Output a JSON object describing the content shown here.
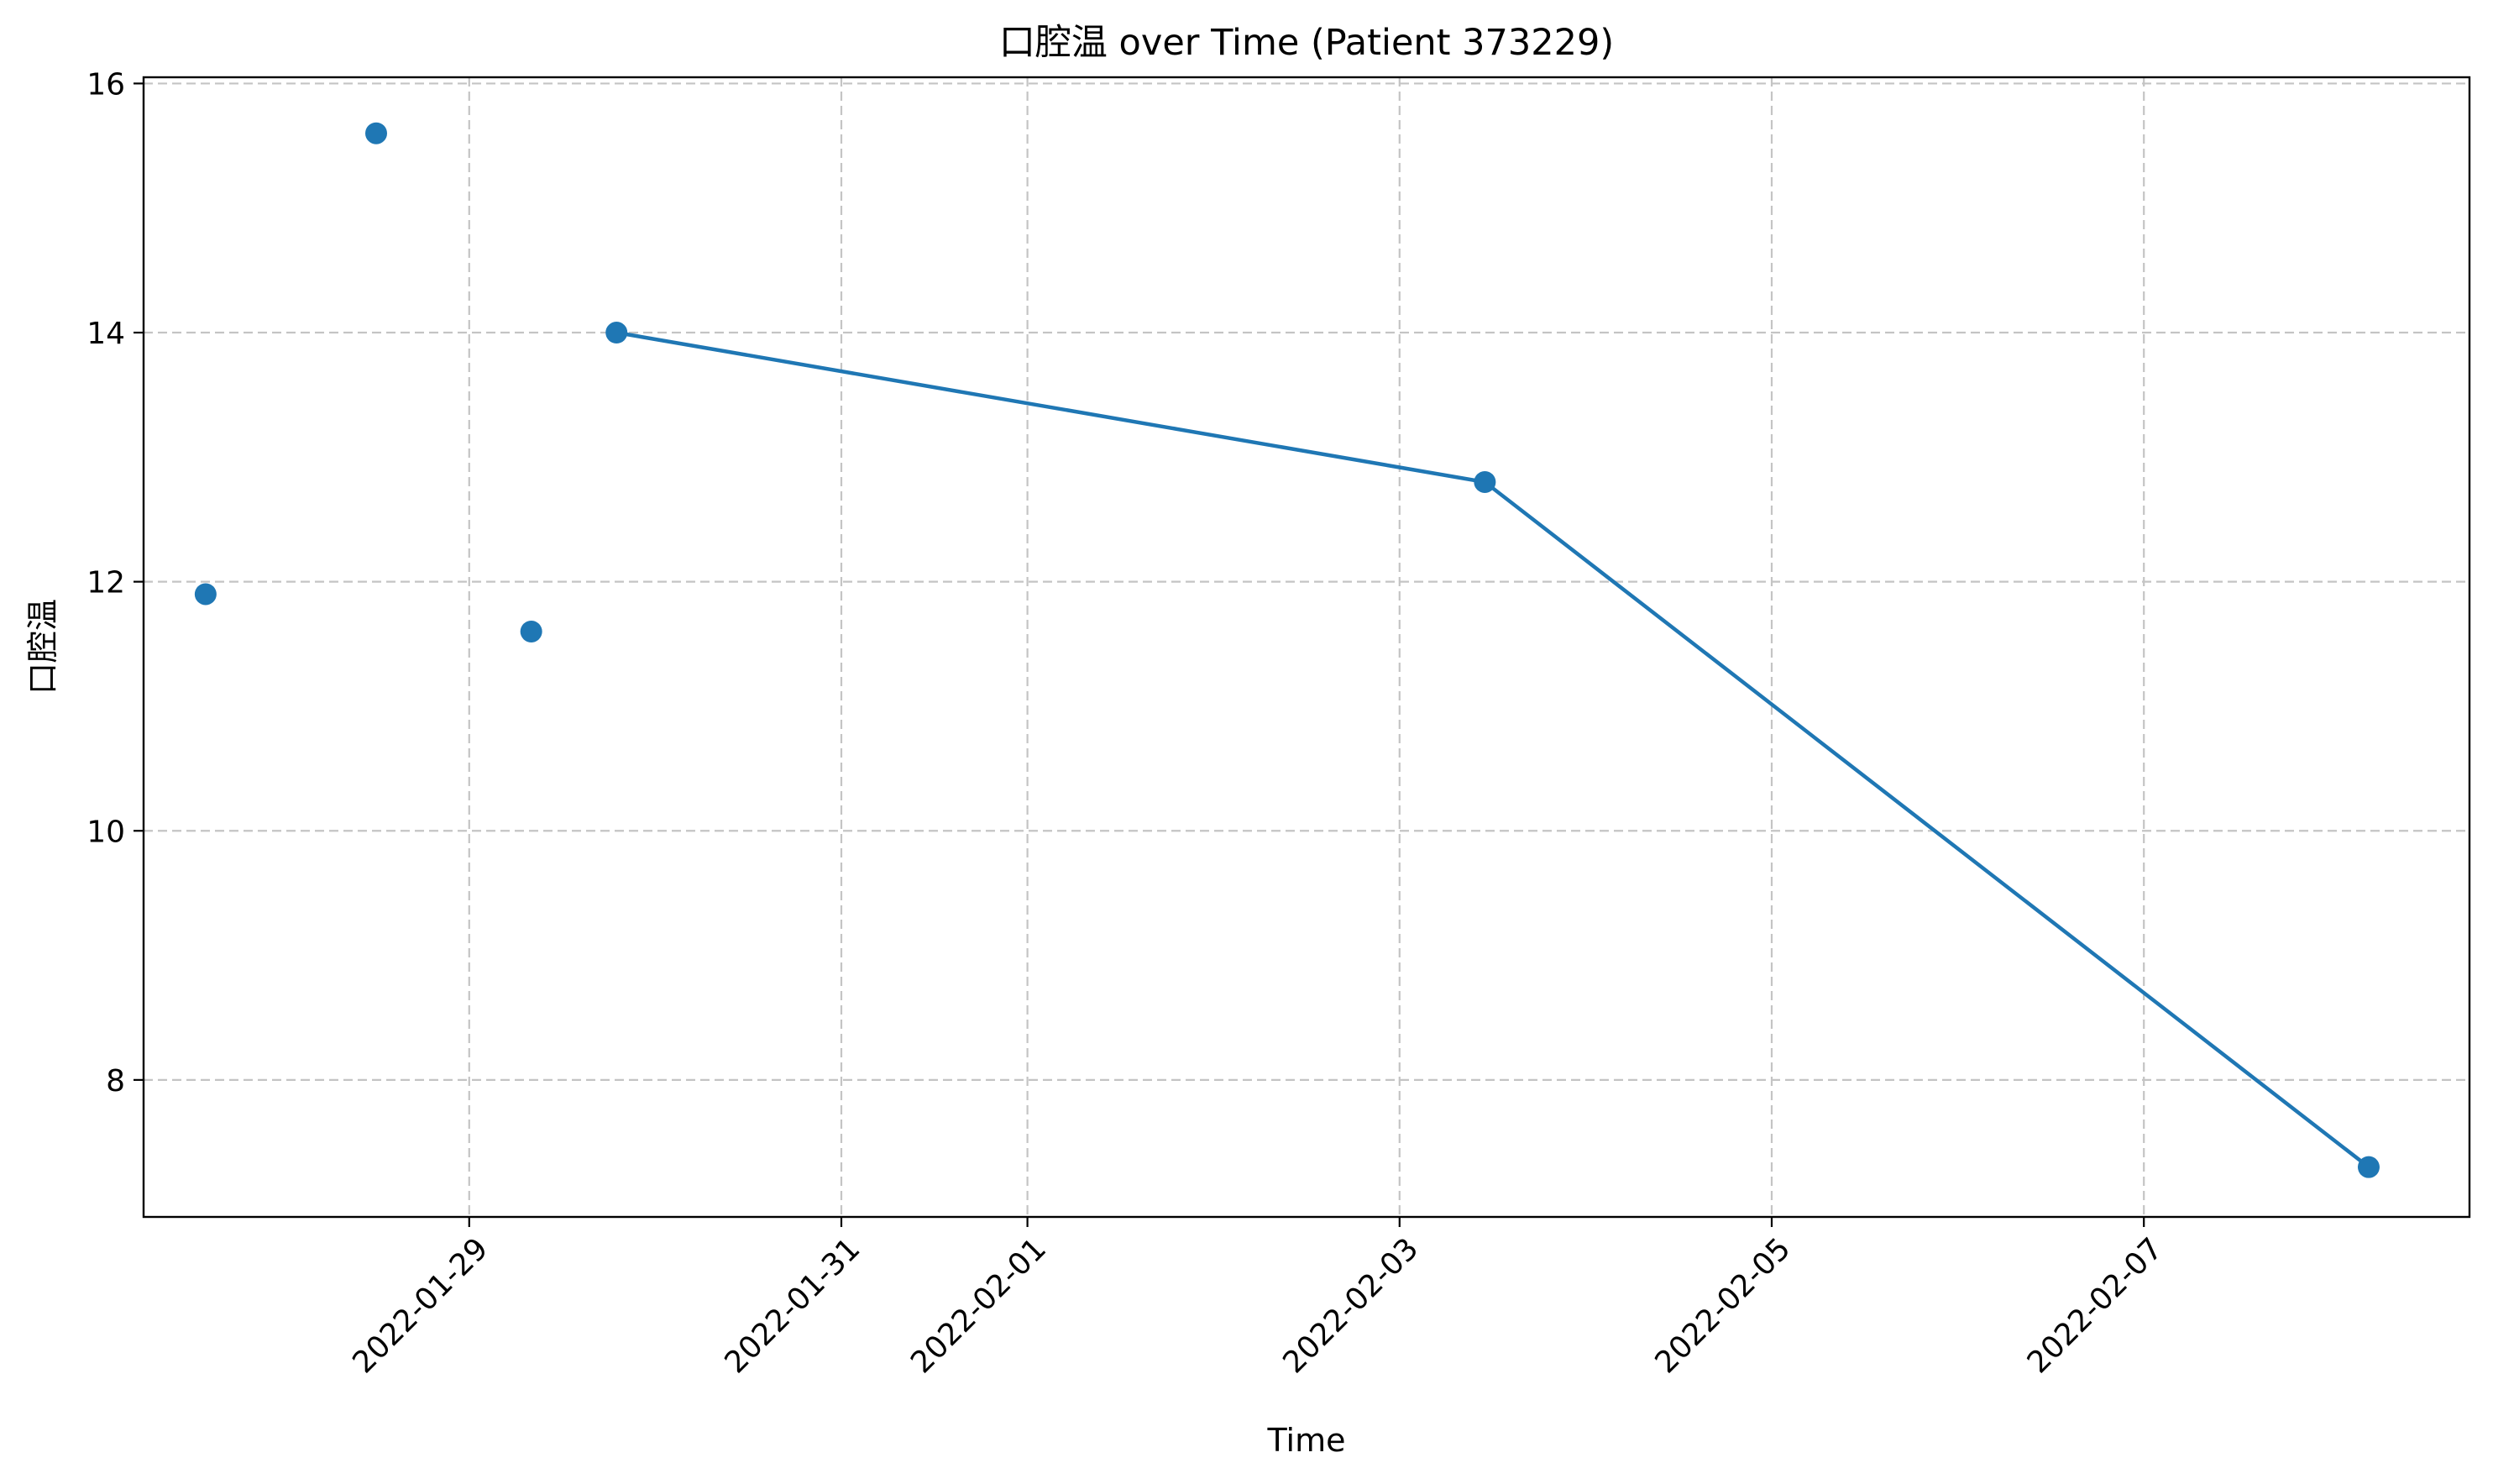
{
  "chart_data": {
    "type": "scatter",
    "title": "口腔温 over Time (Patient 373229)",
    "xlabel": "Time",
    "ylabel": "口腔温",
    "xlim": [
      "2022-01-27 06:00",
      "2022-02-08 18:00"
    ],
    "ylim": [
      6.9,
      16.05
    ],
    "x_ticks": [
      "2022-01-29",
      "2022-01-31",
      "2022-02-01",
      "2022-02-03",
      "2022-02-05",
      "2022-02-07"
    ],
    "y_ticks": [
      8,
      10,
      12,
      14,
      16
    ],
    "grid": true,
    "color": "#1f77b4",
    "series": [
      {
        "style": "markers",
        "points": [
          {
            "x": "2022-01-27 14:00",
            "y": 11.9
          },
          {
            "x": "2022-01-28 12:00",
            "y": 15.6
          },
          {
            "x": "2022-01-29 08:00",
            "y": 11.6
          }
        ]
      },
      {
        "style": "line-markers",
        "points": [
          {
            "x": "2022-01-29 19:00",
            "y": 14.0
          },
          {
            "x": "2022-02-03 11:00",
            "y": 12.8
          },
          {
            "x": "2022-02-08 05:00",
            "y": 7.3
          }
        ]
      }
    ]
  }
}
